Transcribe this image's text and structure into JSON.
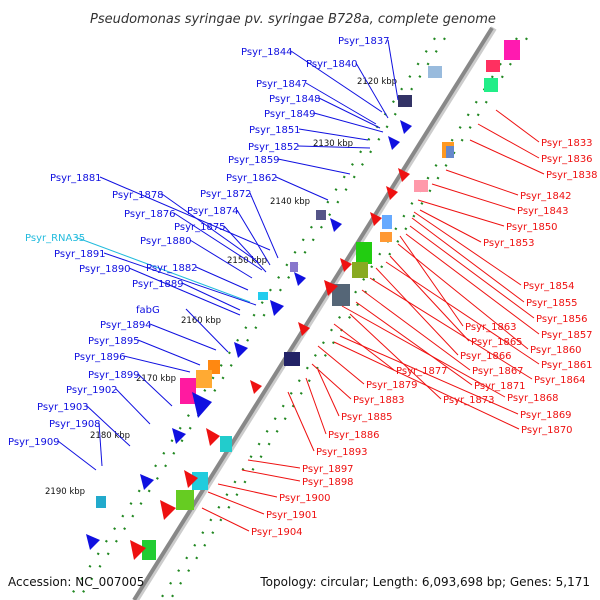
{
  "title": "Pseudomonas syringae pv. syringae B728a, complete genome",
  "footer": {
    "accession": "Accession: NC_007005",
    "topology": "Topology: circular; Length: 6,093,698 bp; Genes: 5,171"
  },
  "kbp_ticks": [
    "2120 kbp",
    "2130 kbp",
    "2140 kbp",
    "2150 kbp",
    "2160 kbp",
    "2170 kbp",
    "2180 kbp",
    "2190 kbp"
  ],
  "labels_left": [
    "Psyr_1837",
    "Psyr_1844",
    "Psyr_1840",
    "Psyr_1847",
    "Psyr_1848",
    "Psyr_1849",
    "Psyr_1851",
    "Psyr_1852",
    "Psyr_1859",
    "Psyr_1862",
    "Psyr_1881",
    "Psyr_1878",
    "Psyr_1872",
    "Psyr_1874",
    "Psyr_1876",
    "Psyr_1875",
    "Psyr_1880",
    "Psyr_RNA35",
    "Psyr_1891",
    "Psyr_1890",
    "Psyr_1882",
    "Psyr_1889",
    "fabG",
    "Psyr_1894",
    "Psyr_1895",
    "Psyr_1896",
    "Psyr_1899",
    "Psyr_1902",
    "Psyr_1903",
    "Psyr_1908",
    "Psyr_1909"
  ],
  "labels_right": [
    "Psyr_1833",
    "Psyr_1836",
    "Psyr_1838",
    "Psyr_1842",
    "Psyr_1843",
    "Psyr_1850",
    "Psyr_1853",
    "Psyr_1854",
    "Psyr_1855",
    "Psyr_1856",
    "Psyr_1857",
    "Psyr_1863",
    "Psyr_1860",
    "Psyr_1865",
    "Psyr_1861",
    "Psyr_1866",
    "Psyr_1864",
    "Psyr_1867",
    "Psyr_1877",
    "Psyr_1879",
    "Psyr_1871",
    "Psyr_1868",
    "Psyr_1883",
    "Psyr_1873",
    "Psyr_1869",
    "Psyr_1885",
    "Psyr_1870",
    "Psyr_1886",
    "Psyr_1893",
    "Psyr_1897",
    "Psyr_1898",
    "Psyr_1900",
    "Psyr_1901",
    "Psyr_1904"
  ],
  "colors": {
    "forward_strand": "#1010e0",
    "reverse_strand": "#ee1111",
    "rna_label": "#22bbdd",
    "backbone": "#888888",
    "gc_dots": "#228822"
  }
}
